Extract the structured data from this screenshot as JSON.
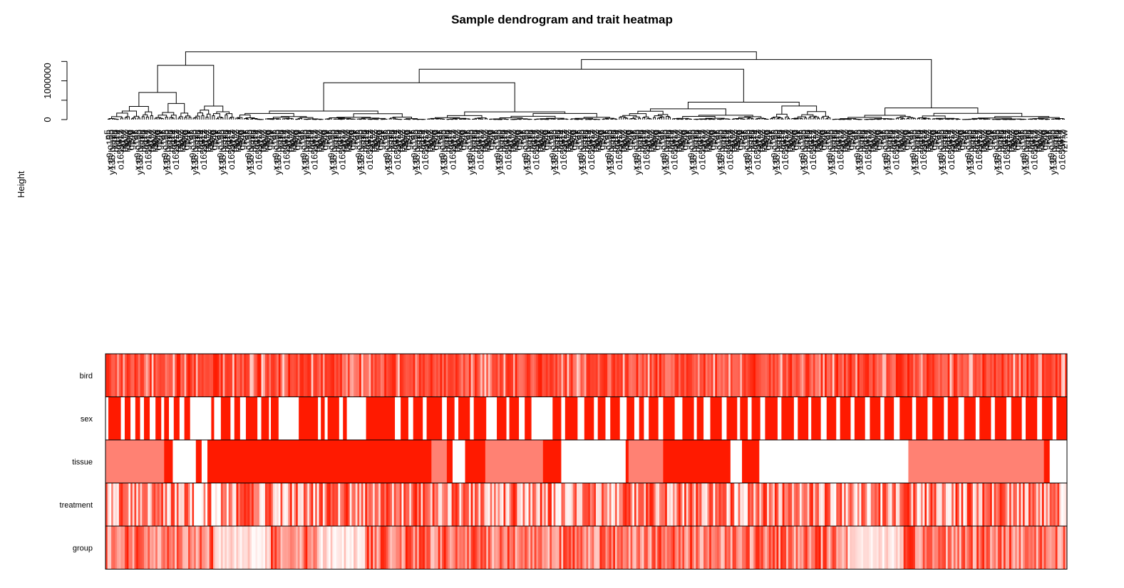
{
  "chart_data": [
    {
      "type": "dendrogram",
      "title": "Sample dendrogram and trait heatmap",
      "xlabel": "",
      "ylabel": "Height",
      "ylim": [
        0,
        1800000
      ],
      "yticks": [
        0,
        500000,
        1000000,
        1500000
      ],
      "ytick_labels": [
        "0",
        "",
        "1000000",
        ""
      ],
      "leaf_count": 450,
      "merge_heights": [
        {
          "cluster": "root",
          "height": 1750000
        },
        {
          "cluster": "left-branch",
          "height": 1400000
        },
        {
          "cluster": "main-right-branch",
          "height": 1670000
        },
        {
          "cluster": "right-inner",
          "height": 1550000
        },
        {
          "cluster": "right-group",
          "height": 1300000
        },
        {
          "cluster": "middle-group",
          "height": 950000
        },
        {
          "cluster": "far-right-group",
          "height": 1050000
        }
      ],
      "visible_leaf_labels": [
        "n5",
        "x.g9.o165",
        "y135.blu10",
        "x.blu",
        "blu10",
        "g114",
        "o165.w12",
        "r27.w",
        "blu12",
        "r30.w",
        "r49.o",
        "g146",
        "R.Y"
      ],
      "grid": false
    },
    {
      "type": "heatmap",
      "rows": [
        "bird",
        "sex",
        "tissue",
        "treatment",
        "group"
      ],
      "color_scale": {
        "low": "#ffffff",
        "high": "#ff1a00"
      },
      "tissue_segments": [
        {
          "from": 0.0,
          "to": 0.061,
          "level": 0.55
        },
        {
          "from": 0.061,
          "to": 0.07,
          "level": 1.0
        },
        {
          "from": 0.07,
          "to": 0.094,
          "level": 0.0
        },
        {
          "from": 0.094,
          "to": 0.1,
          "level": 1.0
        },
        {
          "from": 0.1,
          "to": 0.106,
          "level": 0.0
        },
        {
          "from": 0.106,
          "to": 0.112,
          "level": 1.0
        },
        {
          "from": 0.112,
          "to": 0.339,
          "level": 1.0
        },
        {
          "from": 0.339,
          "to": 0.355,
          "level": 0.55
        },
        {
          "from": 0.355,
          "to": 0.361,
          "level": 1.0
        },
        {
          "from": 0.361,
          "to": 0.374,
          "level": 0.0
        },
        {
          "from": 0.374,
          "to": 0.395,
          "level": 1.0
        },
        {
          "from": 0.395,
          "to": 0.455,
          "level": 0.55
        },
        {
          "from": 0.455,
          "to": 0.474,
          "level": 1.0
        },
        {
          "from": 0.474,
          "to": 0.541,
          "level": 0.0
        },
        {
          "from": 0.541,
          "to": 0.544,
          "level": 1.0
        },
        {
          "from": 0.544,
          "to": 0.58,
          "level": 0.55
        },
        {
          "from": 0.58,
          "to": 0.65,
          "level": 1.0
        },
        {
          "from": 0.65,
          "to": 0.662,
          "level": 0.0
        },
        {
          "from": 0.662,
          "to": 0.68,
          "level": 1.0
        },
        {
          "from": 0.68,
          "to": 0.835,
          "level": 0.0
        },
        {
          "from": 0.835,
          "to": 0.976,
          "level": 0.55
        },
        {
          "from": 0.976,
          "to": 0.982,
          "level": 1.0
        },
        {
          "from": 0.982,
          "to": 1.0,
          "level": 0.0
        }
      ],
      "sex_white_spans": [
        [
          0.0,
          0.003
        ],
        [
          0.016,
          0.02
        ],
        [
          0.026,
          0.031
        ],
        [
          0.036,
          0.04
        ],
        [
          0.046,
          0.052
        ],
        [
          0.058,
          0.061
        ],
        [
          0.066,
          0.071
        ],
        [
          0.077,
          0.082
        ],
        [
          0.088,
          0.11
        ],
        [
          0.113,
          0.12
        ],
        [
          0.13,
          0.134
        ],
        [
          0.14,
          0.146
        ],
        [
          0.158,
          0.162
        ],
        [
          0.17,
          0.172
        ],
        [
          0.18,
          0.201
        ],
        [
          0.221,
          0.224
        ],
        [
          0.228,
          0.231
        ],
        [
          0.243,
          0.247
        ],
        [
          0.251,
          0.271
        ],
        [
          0.301,
          0.307
        ],
        [
          0.315,
          0.32
        ],
        [
          0.33,
          0.334
        ],
        [
          0.35,
          0.355
        ],
        [
          0.363,
          0.367
        ],
        [
          0.379,
          0.383
        ],
        [
          0.396,
          0.407
        ],
        [
          0.417,
          0.42
        ],
        [
          0.43,
          0.436
        ],
        [
          0.443,
          0.465
        ],
        [
          0.474,
          0.478
        ],
        [
          0.491,
          0.498
        ],
        [
          0.508,
          0.512
        ],
        [
          0.52,
          0.525
        ],
        [
          0.535,
          0.542
        ],
        [
          0.55,
          0.555
        ],
        [
          0.56,
          0.565
        ],
        [
          0.575,
          0.58
        ],
        [
          0.592,
          0.6
        ],
        [
          0.612,
          0.615
        ],
        [
          0.622,
          0.629
        ],
        [
          0.641,
          0.646
        ],
        [
          0.657,
          0.66
        ],
        [
          0.668,
          0.672
        ],
        [
          0.681,
          0.686
        ],
        [
          0.699,
          0.703
        ],
        [
          0.716,
          0.72
        ],
        [
          0.731,
          0.734
        ],
        [
          0.744,
          0.75
        ],
        [
          0.76,
          0.764
        ],
        [
          0.775,
          0.779
        ],
        [
          0.79,
          0.795
        ],
        [
          0.806,
          0.81
        ],
        [
          0.82,
          0.826
        ],
        [
          0.839,
          0.843
        ],
        [
          0.855,
          0.86
        ],
        [
          0.872,
          0.876
        ],
        [
          0.887,
          0.893
        ],
        [
          0.905,
          0.909
        ],
        [
          0.921,
          0.925
        ],
        [
          0.937,
          0.942
        ],
        [
          0.953,
          0.957
        ],
        [
          0.969,
          0.974
        ],
        [
          0.985,
          0.989
        ]
      ]
    }
  ]
}
